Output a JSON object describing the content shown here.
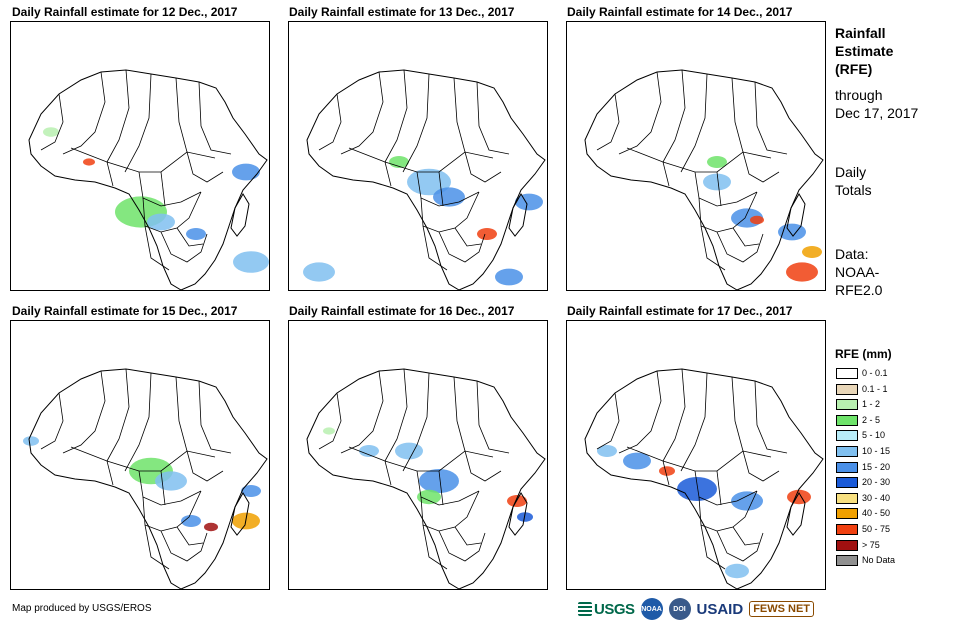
{
  "panels": [
    {
      "title": "Daily Rainfall estimate for 12 Dec., 2017"
    },
    {
      "title": "Daily Rainfall estimate for 13 Dec., 2017"
    },
    {
      "title": "Daily Rainfall estimate for 14 Dec., 2017"
    },
    {
      "title": "Daily Rainfall estimate for 15 Dec., 2017"
    },
    {
      "title": "Daily Rainfall estimate for 16 Dec., 2017"
    },
    {
      "title": "Daily Rainfall estimate for 17 Dec., 2017"
    }
  ],
  "side": {
    "title_line1": "Rainfall",
    "title_line2": "Estimate",
    "title_line3": "(RFE)",
    "through": "through",
    "date": "Dec 17, 2017",
    "daily1": "Daily",
    "daily2": "Totals",
    "data1": "Data:",
    "data2": "NOAA-",
    "data3": "RFE2.0"
  },
  "legend": {
    "title": "RFE (mm)",
    "items": [
      {
        "label": "0 - 0.1",
        "color": "#ffffff"
      },
      {
        "label": "0.1 - 1",
        "color": "#e8d6b8"
      },
      {
        "label": "1 - 2",
        "color": "#b8f0b0"
      },
      {
        "label": "2 - 5",
        "color": "#6ee36a"
      },
      {
        "label": "5 - 10",
        "color": "#b8ecf8"
      },
      {
        "label": "10 - 15",
        "color": "#80c0f0"
      },
      {
        "label": "15 - 20",
        "color": "#4a90e8"
      },
      {
        "label": "20 - 30",
        "color": "#1a5ad8"
      },
      {
        "label": "30 - 40",
        "color": "#f8e080"
      },
      {
        "label": "40 - 50",
        "color": "#f0a000"
      },
      {
        "label": "50 - 75",
        "color": "#f04010"
      },
      {
        "label": "> 75",
        "color": "#a01010"
      },
      {
        "label": "No Data",
        "color": "#909090"
      }
    ]
  },
  "credit": "Map produced by USGS/EROS",
  "logos": {
    "usgs": "USGS",
    "noaa": "NOAA",
    "dept": "DOI",
    "usaid": "USAID",
    "fews": "FEWS NET"
  }
}
